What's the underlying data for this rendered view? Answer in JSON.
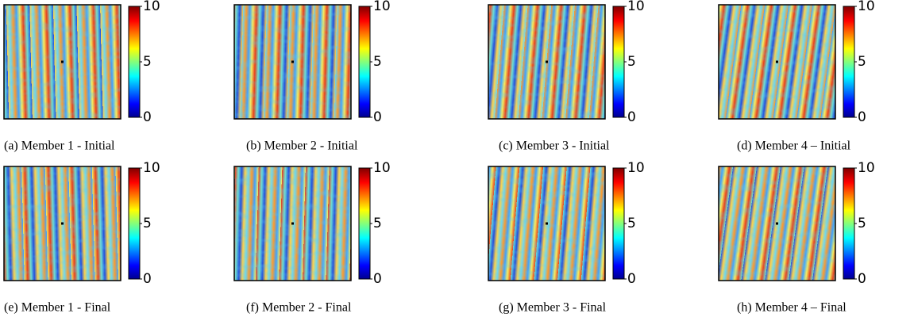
{
  "panels": [
    {
      "caption": "(a) Member 1 - Initial"
    },
    {
      "caption": "(b) Member 2 - Initial"
    },
    {
      "caption": "(c) Member 3 - Initial"
    },
    {
      "caption": "(d) Member 4 – Initial"
    },
    {
      "caption": "(e) Member 1 - Final"
    },
    {
      "caption": "(f) Member 2 - Final"
    },
    {
      "caption": "(g) Member 3 - Final"
    },
    {
      "caption": "(h) Member 4 – Final"
    }
  ],
  "colorbar_ticks": [
    0,
    5,
    10
  ]
}
